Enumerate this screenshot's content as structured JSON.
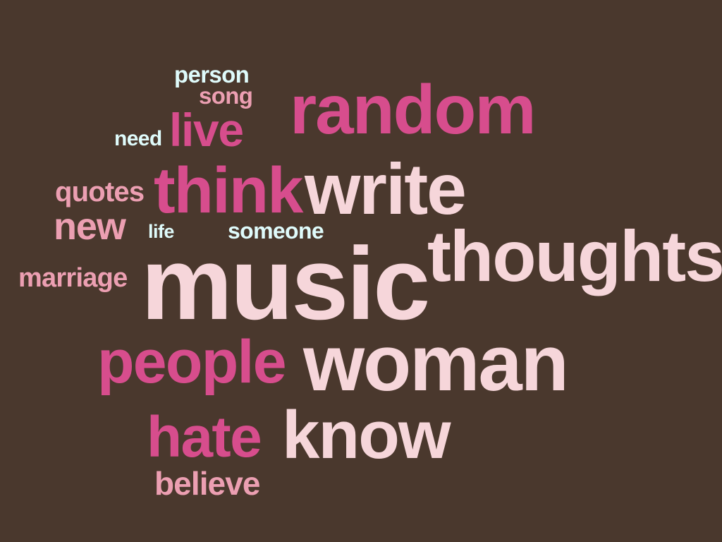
{
  "words": {
    "person": "person",
    "song": "song",
    "random": "random",
    "need": "need",
    "live": "live",
    "think": "think",
    "write": "write",
    "quotes": "quotes",
    "new": "new",
    "life": "life",
    "someone": "someone",
    "thoughts": "thoughts",
    "music": "music",
    "marriage": "marriage",
    "people": "people",
    "woman": "woman",
    "hate": "hate",
    "know": "know",
    "believe": "believe"
  },
  "colors": {
    "background": "#4a382d",
    "light_pink": "#f6d6da",
    "magenta": "#d74d8d",
    "salmon": "#ec9fb2",
    "cyan": "#dffbfb"
  }
}
